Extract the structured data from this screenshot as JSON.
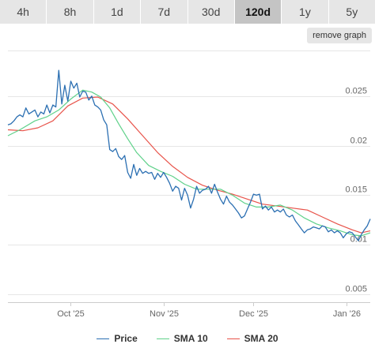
{
  "tabs": [
    {
      "label": "4h",
      "active": false
    },
    {
      "label": "8h",
      "active": false
    },
    {
      "label": "1d",
      "active": false
    },
    {
      "label": "7d",
      "active": false
    },
    {
      "label": "30d",
      "active": false
    },
    {
      "label": "120d",
      "active": true
    },
    {
      "label": "1y",
      "active": false
    },
    {
      "label": "5y",
      "active": false
    }
  ],
  "remove_graph_label": "remove graph",
  "colors": {
    "price": "#2b6fb2",
    "sma10": "#5fd18a",
    "sma20": "#e8534a",
    "grid": "#e6e6e6"
  },
  "chart_data": {
    "type": "line",
    "x_axis": {
      "start": "2025-09-10",
      "end": "2026-01-09",
      "ticks": [
        {
          "date": "2025-10-01",
          "label": "Oct '25"
        },
        {
          "date": "2025-11-01",
          "label": "Nov '25"
        },
        {
          "date": "2025-12-01",
          "label": "Dec '25"
        },
        {
          "date": "2026-01-01",
          "label": "Jan '26"
        }
      ]
    },
    "y_axis": {
      "ylim": [
        0.0042,
        0.0296
      ],
      "ticks": [
        {
          "value": 0.005,
          "label": "0.005"
        },
        {
          "value": 0.01,
          "label": "0.01"
        },
        {
          "value": 0.015,
          "label": "0.015"
        },
        {
          "value": 0.02,
          "label": "0.02"
        },
        {
          "value": 0.025,
          "label": "0.025"
        }
      ]
    },
    "grid": true,
    "legend": "bottom",
    "series": [
      {
        "name": "Price",
        "color": "#2b6fb2",
        "points": [
          [
            "2025-09-10",
            0.0221
          ],
          [
            "2025-09-11",
            0.0222
          ],
          [
            "2025-09-12",
            0.0225
          ],
          [
            "2025-09-13",
            0.0229
          ],
          [
            "2025-09-14",
            0.0231
          ],
          [
            "2025-09-15",
            0.0229
          ],
          [
            "2025-09-16",
            0.0238
          ],
          [
            "2025-09-17",
            0.0232
          ],
          [
            "2025-09-18",
            0.0234
          ],
          [
            "2025-09-19",
            0.0236
          ],
          [
            "2025-09-20",
            0.0229
          ],
          [
            "2025-09-21",
            0.0234
          ],
          [
            "2025-09-22",
            0.0232
          ],
          [
            "2025-09-23",
            0.0241
          ],
          [
            "2025-09-24",
            0.0233
          ],
          [
            "2025-09-25",
            0.0241
          ],
          [
            "2025-09-26",
            0.0239
          ],
          [
            "2025-09-27",
            0.0276
          ],
          [
            "2025-09-28",
            0.0242
          ],
          [
            "2025-09-29",
            0.0261
          ],
          [
            "2025-09-30",
            0.0245
          ],
          [
            "2025-10-01",
            0.0265
          ],
          [
            "2025-10-02",
            0.0258
          ],
          [
            "2025-10-03",
            0.0263
          ],
          [
            "2025-10-04",
            0.0249
          ],
          [
            "2025-10-05",
            0.0255
          ],
          [
            "2025-10-06",
            0.0254
          ],
          [
            "2025-10-07",
            0.0246
          ],
          [
            "2025-10-08",
            0.025
          ],
          [
            "2025-10-09",
            0.0241
          ],
          [
            "2025-10-10",
            0.0239
          ],
          [
            "2025-10-11",
            0.0236
          ],
          [
            "2025-10-12",
            0.0226
          ],
          [
            "2025-10-13",
            0.0221
          ],
          [
            "2025-10-14",
            0.0196
          ],
          [
            "2025-10-15",
            0.0194
          ],
          [
            "2025-10-16",
            0.0197
          ],
          [
            "2025-10-17",
            0.0189
          ],
          [
            "2025-10-18",
            0.0186
          ],
          [
            "2025-10-19",
            0.019
          ],
          [
            "2025-10-20",
            0.0173
          ],
          [
            "2025-10-21",
            0.0167
          ],
          [
            "2025-10-22",
            0.0181
          ],
          [
            "2025-10-23",
            0.017
          ],
          [
            "2025-10-24",
            0.0177
          ],
          [
            "2025-10-25",
            0.0172
          ],
          [
            "2025-10-26",
            0.0174
          ],
          [
            "2025-10-27",
            0.0172
          ],
          [
            "2025-10-28",
            0.0173
          ],
          [
            "2025-10-29",
            0.0166
          ],
          [
            "2025-10-30",
            0.0172
          ],
          [
            "2025-10-31",
            0.0168
          ],
          [
            "2025-11-01",
            0.0173
          ],
          [
            "2025-11-02",
            0.0168
          ],
          [
            "2025-11-03",
            0.0162
          ],
          [
            "2025-11-04",
            0.0154
          ],
          [
            "2025-11-05",
            0.0159
          ],
          [
            "2025-11-06",
            0.0157
          ],
          [
            "2025-11-07",
            0.0145
          ],
          [
            "2025-11-08",
            0.0157
          ],
          [
            "2025-11-09",
            0.015
          ],
          [
            "2025-11-10",
            0.0137
          ],
          [
            "2025-11-11",
            0.0146
          ],
          [
            "2025-11-12",
            0.0159
          ],
          [
            "2025-11-13",
            0.0152
          ],
          [
            "2025-11-14",
            0.0155
          ],
          [
            "2025-11-15",
            0.0156
          ],
          [
            "2025-11-16",
            0.0159
          ],
          [
            "2025-11-17",
            0.0152
          ],
          [
            "2025-11-18",
            0.0161
          ],
          [
            "2025-11-19",
            0.0153
          ],
          [
            "2025-11-20",
            0.0146
          ],
          [
            "2025-11-21",
            0.0141
          ],
          [
            "2025-11-22",
            0.0149
          ],
          [
            "2025-11-23",
            0.0143
          ],
          [
            "2025-11-24",
            0.014
          ],
          [
            "2025-11-25",
            0.0136
          ],
          [
            "2025-11-26",
            0.0132
          ],
          [
            "2025-11-27",
            0.0127
          ],
          [
            "2025-11-28",
            0.0129
          ],
          [
            "2025-11-29",
            0.0136
          ],
          [
            "2025-11-30",
            0.0143
          ],
          [
            "2025-12-01",
            0.0151
          ],
          [
            "2025-12-02",
            0.015
          ],
          [
            "2025-12-03",
            0.0151
          ],
          [
            "2025-12-04",
            0.0136
          ],
          [
            "2025-12-05",
            0.0139
          ],
          [
            "2025-12-06",
            0.0135
          ],
          [
            "2025-12-07",
            0.0138
          ],
          [
            "2025-12-08",
            0.0133
          ],
          [
            "2025-12-09",
            0.0135
          ],
          [
            "2025-12-10",
            0.0133
          ],
          [
            "2025-12-11",
            0.0136
          ],
          [
            "2025-12-12",
            0.013
          ],
          [
            "2025-12-13",
            0.0128
          ],
          [
            "2025-12-14",
            0.013
          ],
          [
            "2025-12-15",
            0.0124
          ],
          [
            "2025-12-16",
            0.012
          ],
          [
            "2025-12-17",
            0.0116
          ],
          [
            "2025-12-18",
            0.0112
          ],
          [
            "2025-12-19",
            0.0115
          ],
          [
            "2025-12-20",
            0.0116
          ],
          [
            "2025-12-21",
            0.0118
          ],
          [
            "2025-12-22",
            0.0117
          ],
          [
            "2025-12-23",
            0.0116
          ],
          [
            "2025-12-24",
            0.0119
          ],
          [
            "2025-12-25",
            0.0118
          ],
          [
            "2025-12-26",
            0.0113
          ],
          [
            "2025-12-27",
            0.0115
          ],
          [
            "2025-12-28",
            0.0112
          ],
          [
            "2025-12-29",
            0.0114
          ],
          [
            "2025-12-30",
            0.0112
          ],
          [
            "2025-12-31",
            0.0107
          ],
          [
            "2026-01-01",
            0.0111
          ],
          [
            "2026-01-02",
            0.0113
          ],
          [
            "2026-01-03",
            0.0112
          ],
          [
            "2026-01-04",
            0.0108
          ],
          [
            "2026-01-05",
            0.0104
          ],
          [
            "2026-01-06",
            0.011
          ],
          [
            "2026-01-07",
            0.0115
          ],
          [
            "2026-01-08",
            0.0119
          ],
          [
            "2026-01-09",
            0.0126
          ]
        ]
      },
      {
        "name": "SMA 10",
        "color": "#5fd18a",
        "points": [
          [
            "2025-09-10",
            0.021
          ],
          [
            "2025-09-14",
            0.0216
          ],
          [
            "2025-09-19",
            0.0225
          ],
          [
            "2025-09-23",
            0.0229
          ],
          [
            "2025-09-27",
            0.0236
          ],
          [
            "2025-10-01",
            0.0247
          ],
          [
            "2025-10-05",
            0.0256
          ],
          [
            "2025-10-08",
            0.0254
          ],
          [
            "2025-10-11",
            0.0249
          ],
          [
            "2025-10-14",
            0.0238
          ],
          [
            "2025-10-17",
            0.0222
          ],
          [
            "2025-10-20",
            0.0207
          ],
          [
            "2025-10-23",
            0.0193
          ],
          [
            "2025-10-27",
            0.018
          ],
          [
            "2025-10-31",
            0.0174
          ],
          [
            "2025-11-04",
            0.0169
          ],
          [
            "2025-11-08",
            0.0161
          ],
          [
            "2025-11-12",
            0.0156
          ],
          [
            "2025-11-16",
            0.0156
          ],
          [
            "2025-11-20",
            0.0156
          ],
          [
            "2025-11-24",
            0.015
          ],
          [
            "2025-11-28",
            0.0142
          ],
          [
            "2025-12-02",
            0.0138
          ],
          [
            "2025-12-06",
            0.0138
          ],
          [
            "2025-12-10",
            0.014
          ],
          [
            "2025-12-14",
            0.0135
          ],
          [
            "2025-12-18",
            0.0127
          ],
          [
            "2025-12-22",
            0.0121
          ],
          [
            "2025-12-26",
            0.0117
          ],
          [
            "2025-12-30",
            0.0114
          ],
          [
            "2026-01-03",
            0.011
          ],
          [
            "2026-01-06",
            0.0109
          ],
          [
            "2026-01-09",
            0.0112
          ]
        ]
      },
      {
        "name": "SMA 20",
        "color": "#e8534a",
        "points": [
          [
            "2025-09-10",
            0.0216
          ],
          [
            "2025-09-15",
            0.0215
          ],
          [
            "2025-09-20",
            0.0218
          ],
          [
            "2025-09-25",
            0.0225
          ],
          [
            "2025-09-30",
            0.024
          ],
          [
            "2025-10-05",
            0.0248
          ],
          [
            "2025-10-10",
            0.0249
          ],
          [
            "2025-10-15",
            0.0242
          ],
          [
            "2025-10-20",
            0.0227
          ],
          [
            "2025-10-25",
            0.021
          ],
          [
            "2025-10-30",
            0.0193
          ],
          [
            "2025-11-04",
            0.0179
          ],
          [
            "2025-11-09",
            0.0168
          ],
          [
            "2025-11-14",
            0.016
          ],
          [
            "2025-11-19",
            0.0155
          ],
          [
            "2025-11-24",
            0.0151
          ],
          [
            "2025-11-29",
            0.0146
          ],
          [
            "2025-12-04",
            0.0141
          ],
          [
            "2025-12-09",
            0.0139
          ],
          [
            "2025-12-14",
            0.0137
          ],
          [
            "2025-12-19",
            0.0135
          ],
          [
            "2025-12-24",
            0.0128
          ],
          [
            "2025-12-29",
            0.0121
          ],
          [
            "2026-01-03",
            0.0115
          ],
          [
            "2026-01-06",
            0.0112
          ],
          [
            "2026-01-09",
            0.0114
          ]
        ]
      }
    ]
  }
}
